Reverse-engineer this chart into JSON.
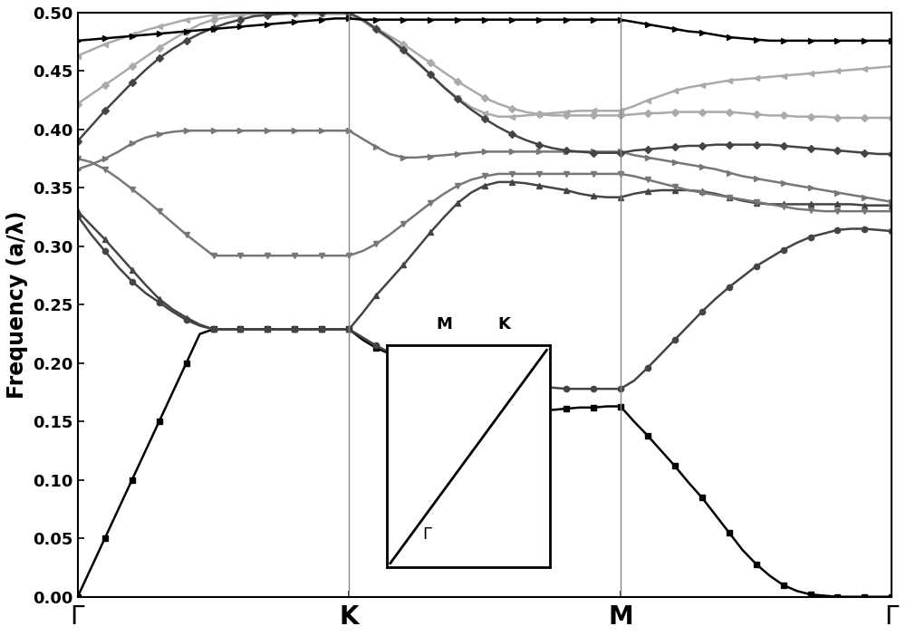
{
  "ylabel": "Frequency (a/λ)",
  "ylim": [
    0.0,
    0.5
  ],
  "yticks": [
    0.0,
    0.05,
    0.1,
    0.15,
    0.2,
    0.25,
    0.3,
    0.35,
    0.4,
    0.45,
    0.5
  ],
  "background_color": "#ffffff",
  "c_black": "#000000",
  "c_dark": "#4a4a4a",
  "c_medium": "#7a7a7a",
  "c_light": "#aaaaaa",
  "vline_color": "#888888",
  "bands": {
    "b1": {
      "gk": [
        0.0,
        0.025,
        0.05,
        0.075,
        0.1,
        0.125,
        0.15,
        0.175,
        0.2,
        0.225,
        0.229,
        0.229,
        0.229,
        0.229,
        0.229,
        0.229,
        0.229,
        0.229,
        0.229,
        0.229
      ],
      "km": [
        0.229,
        0.22,
        0.213,
        0.208,
        0.204,
        0.2,
        0.196,
        0.19,
        0.183,
        0.175,
        0.168,
        0.163,
        0.16,
        0.159,
        0.159,
        0.16,
        0.161,
        0.162,
        0.162,
        0.163
      ],
      "mg": [
        0.163,
        0.15,
        0.138,
        0.125,
        0.112,
        0.098,
        0.085,
        0.07,
        0.055,
        0.04,
        0.028,
        0.018,
        0.01,
        0.005,
        0.002,
        0.001,
        0.0,
        0.0,
        0.0,
        0.0,
        0.0
      ],
      "color": "#000000",
      "marker": "s"
    },
    "b2": {
      "gk": [
        0.326,
        0.31,
        0.296,
        0.282,
        0.27,
        0.26,
        0.252,
        0.244,
        0.237,
        0.232,
        0.229,
        0.229,
        0.229,
        0.229,
        0.229,
        0.229,
        0.229,
        0.229,
        0.229,
        0.229
      ],
      "km": [
        0.229,
        0.222,
        0.215,
        0.209,
        0.204,
        0.2,
        0.196,
        0.192,
        0.188,
        0.185,
        0.183,
        0.181,
        0.18,
        0.179,
        0.179,
        0.179,
        0.178,
        0.178,
        0.178,
        0.178
      ],
      "mg": [
        0.178,
        0.185,
        0.196,
        0.208,
        0.22,
        0.232,
        0.244,
        0.255,
        0.265,
        0.274,
        0.283,
        0.29,
        0.297,
        0.303,
        0.308,
        0.311,
        0.314,
        0.315,
        0.315,
        0.314,
        0.313
      ],
      "color": "#444444",
      "marker": "o"
    },
    "b3": {
      "gk": [
        0.33,
        0.318,
        0.306,
        0.293,
        0.28,
        0.267,
        0.255,
        0.246,
        0.239,
        0.233,
        0.229,
        0.229,
        0.229,
        0.229,
        0.229,
        0.229,
        0.229,
        0.229,
        0.229,
        0.229
      ],
      "km": [
        0.229,
        0.243,
        0.258,
        0.271,
        0.284,
        0.298,
        0.312,
        0.325,
        0.337,
        0.346,
        0.352,
        0.355,
        0.355,
        0.354,
        0.352,
        0.35,
        0.348,
        0.345,
        0.343,
        0.342
      ],
      "mg": [
        0.342,
        0.345,
        0.347,
        0.348,
        0.348,
        0.348,
        0.347,
        0.345,
        0.342,
        0.339,
        0.337,
        0.336,
        0.336,
        0.336,
        0.336,
        0.336,
        0.336,
        0.336,
        0.335,
        0.335,
        0.335
      ],
      "color": "#444444",
      "marker": "^"
    },
    "b4": {
      "gk": [
        0.366,
        0.37,
        0.375,
        0.381,
        0.388,
        0.393,
        0.396,
        0.398,
        0.399,
        0.399,
        0.399,
        0.399,
        0.399,
        0.399,
        0.399,
        0.399,
        0.399,
        0.399,
        0.399,
        0.399
      ],
      "km": [
        0.399,
        0.392,
        0.385,
        0.379,
        0.376,
        0.376,
        0.377,
        0.378,
        0.379,
        0.38,
        0.381,
        0.381,
        0.381,
        0.381,
        0.381,
        0.381,
        0.381,
        0.381,
        0.381,
        0.381
      ],
      "mg": [
        0.381,
        0.378,
        0.376,
        0.374,
        0.372,
        0.37,
        0.368,
        0.366,
        0.363,
        0.36,
        0.358,
        0.356,
        0.354,
        0.352,
        0.35,
        0.348,
        0.346,
        0.344,
        0.342,
        0.34,
        0.338
      ],
      "color": "#777777",
      "marker": ">"
    },
    "b5": {
      "gk": [
        0.375,
        0.372,
        0.366,
        0.358,
        0.349,
        0.34,
        0.33,
        0.32,
        0.31,
        0.301,
        0.292,
        0.292,
        0.292,
        0.292,
        0.292,
        0.292,
        0.292,
        0.292,
        0.292,
        0.292
      ],
      "km": [
        0.292,
        0.296,
        0.302,
        0.31,
        0.319,
        0.328,
        0.337,
        0.345,
        0.352,
        0.357,
        0.36,
        0.362,
        0.362,
        0.362,
        0.362,
        0.362,
        0.362,
        0.362,
        0.362,
        0.362
      ],
      "mg": [
        0.362,
        0.36,
        0.357,
        0.354,
        0.351,
        0.348,
        0.346,
        0.344,
        0.342,
        0.34,
        0.338,
        0.336,
        0.334,
        0.332,
        0.331,
        0.33,
        0.33,
        0.33,
        0.33,
        0.33,
        0.33
      ],
      "color": "#777777",
      "marker": "v"
    },
    "b6": {
      "gk": [
        0.463,
        0.468,
        0.473,
        0.477,
        0.481,
        0.485,
        0.488,
        0.491,
        0.494,
        0.496,
        0.498,
        0.499,
        0.499,
        0.499,
        0.499,
        0.499,
        0.499,
        0.499,
        0.499,
        0.499
      ],
      "km": [
        0.499,
        0.493,
        0.485,
        0.477,
        0.467,
        0.457,
        0.447,
        0.436,
        0.427,
        0.419,
        0.414,
        0.411,
        0.411,
        0.412,
        0.413,
        0.414,
        0.415,
        0.416,
        0.416,
        0.416
      ],
      "mg": [
        0.416,
        0.42,
        0.425,
        0.429,
        0.433,
        0.436,
        0.438,
        0.44,
        0.442,
        0.443,
        0.444,
        0.445,
        0.446,
        0.447,
        0.448,
        0.449,
        0.45,
        0.451,
        0.452,
        0.453,
        0.454
      ],
      "color": "#aaaaaa",
      "marker": "<"
    },
    "b7": {
      "gk": [
        0.422,
        0.43,
        0.438,
        0.446,
        0.454,
        0.462,
        0.47,
        0.477,
        0.484,
        0.49,
        0.494,
        0.496,
        0.498,
        0.499,
        0.499,
        0.499,
        0.499,
        0.499,
        0.499,
        0.499
      ],
      "km": [
        0.499,
        0.494,
        0.487,
        0.48,
        0.473,
        0.465,
        0.457,
        0.449,
        0.441,
        0.434,
        0.427,
        0.422,
        0.418,
        0.415,
        0.413,
        0.412,
        0.412,
        0.412,
        0.412,
        0.412
      ],
      "mg": [
        0.412,
        0.413,
        0.414,
        0.414,
        0.415,
        0.415,
        0.415,
        0.415,
        0.415,
        0.414,
        0.413,
        0.412,
        0.412,
        0.411,
        0.411,
        0.411,
        0.41,
        0.41,
        0.41,
        0.41,
        0.41
      ],
      "color": "#aaaaaa",
      "marker": "D"
    },
    "b8": {
      "gk": [
        0.39,
        0.403,
        0.416,
        0.428,
        0.44,
        0.451,
        0.461,
        0.469,
        0.476,
        0.482,
        0.487,
        0.491,
        0.494,
        0.497,
        0.498,
        0.499,
        0.5,
        0.5,
        0.5,
        0.5
      ],
      "km": [
        0.5,
        0.494,
        0.486,
        0.478,
        0.468,
        0.458,
        0.447,
        0.436,
        0.426,
        0.417,
        0.409,
        0.402,
        0.396,
        0.391,
        0.387,
        0.384,
        0.382,
        0.381,
        0.38,
        0.38
      ],
      "mg": [
        0.38,
        0.382,
        0.383,
        0.384,
        0.385,
        0.386,
        0.386,
        0.387,
        0.387,
        0.387,
        0.387,
        0.387,
        0.386,
        0.385,
        0.384,
        0.383,
        0.382,
        0.381,
        0.38,
        0.379,
        0.379
      ],
      "color": "#444444",
      "marker": "D"
    },
    "b9": {
      "gk": [
        0.476,
        0.477,
        0.478,
        0.479,
        0.48,
        0.481,
        0.482,
        0.483,
        0.484,
        0.485,
        0.486,
        0.487,
        0.488,
        0.489,
        0.49,
        0.491,
        0.492,
        0.493,
        0.494,
        0.495
      ],
      "km": [
        0.495,
        0.494,
        0.494,
        0.494,
        0.494,
        0.494,
        0.494,
        0.494,
        0.494,
        0.494,
        0.494,
        0.494,
        0.494,
        0.494,
        0.494,
        0.494,
        0.494,
        0.494,
        0.494,
        0.494
      ],
      "mg": [
        0.494,
        0.492,
        0.49,
        0.488,
        0.486,
        0.484,
        0.483,
        0.481,
        0.479,
        0.478,
        0.477,
        0.476,
        0.476,
        0.476,
        0.476,
        0.476,
        0.476,
        0.476,
        0.476,
        0.476,
        0.476
      ],
      "color": "#000000",
      "marker": ">"
    }
  }
}
